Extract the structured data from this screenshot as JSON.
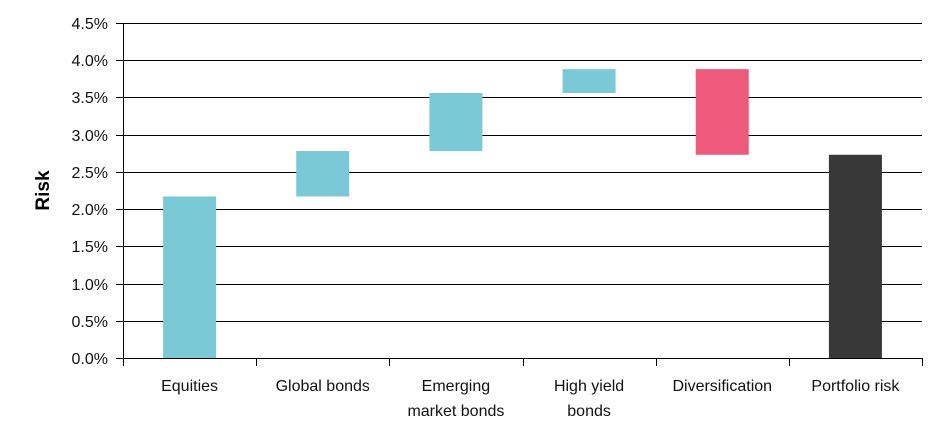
{
  "chart_data": {
    "type": "bar",
    "subtype": "waterfall",
    "ylabel": "Risk",
    "xlabel": "",
    "ylim": [
      0,
      4.5
    ],
    "y_tick_values": [
      0,
      0.5,
      1.0,
      1.5,
      2.0,
      2.5,
      3.0,
      3.5,
      4.0,
      4.5
    ],
    "y_tick_labels": [
      "0.0%",
      "0.5%",
      "1.0%",
      "1.5%",
      "2.0%",
      "2.5%",
      "3.0%",
      "3.5%",
      "4.0%",
      "4.5%"
    ],
    "grid": true,
    "legend": "none",
    "categories": [
      [
        "Equities"
      ],
      [
        "Global bonds"
      ],
      [
        "Emerging",
        "market bonds"
      ],
      [
        "High yield",
        "bonds"
      ],
      [
        "Diversification"
      ],
      [
        "Portfolio risk"
      ]
    ],
    "bars": [
      {
        "start": 0.0,
        "end": 2.17,
        "color": "#7BC8D6"
      },
      {
        "start": 2.17,
        "end": 2.78,
        "color": "#7BC8D6"
      },
      {
        "start": 2.78,
        "end": 3.56,
        "color": "#7BC8D6"
      },
      {
        "start": 3.56,
        "end": 3.88,
        "color": "#7BC8D6"
      },
      {
        "start": 3.88,
        "end": 2.73,
        "color": "#EE5A7C"
      },
      {
        "start": 0.0,
        "end": 2.73,
        "color": "#383838"
      }
    ],
    "colors": {
      "gridline": "#000000",
      "axis": "#000000"
    }
  }
}
